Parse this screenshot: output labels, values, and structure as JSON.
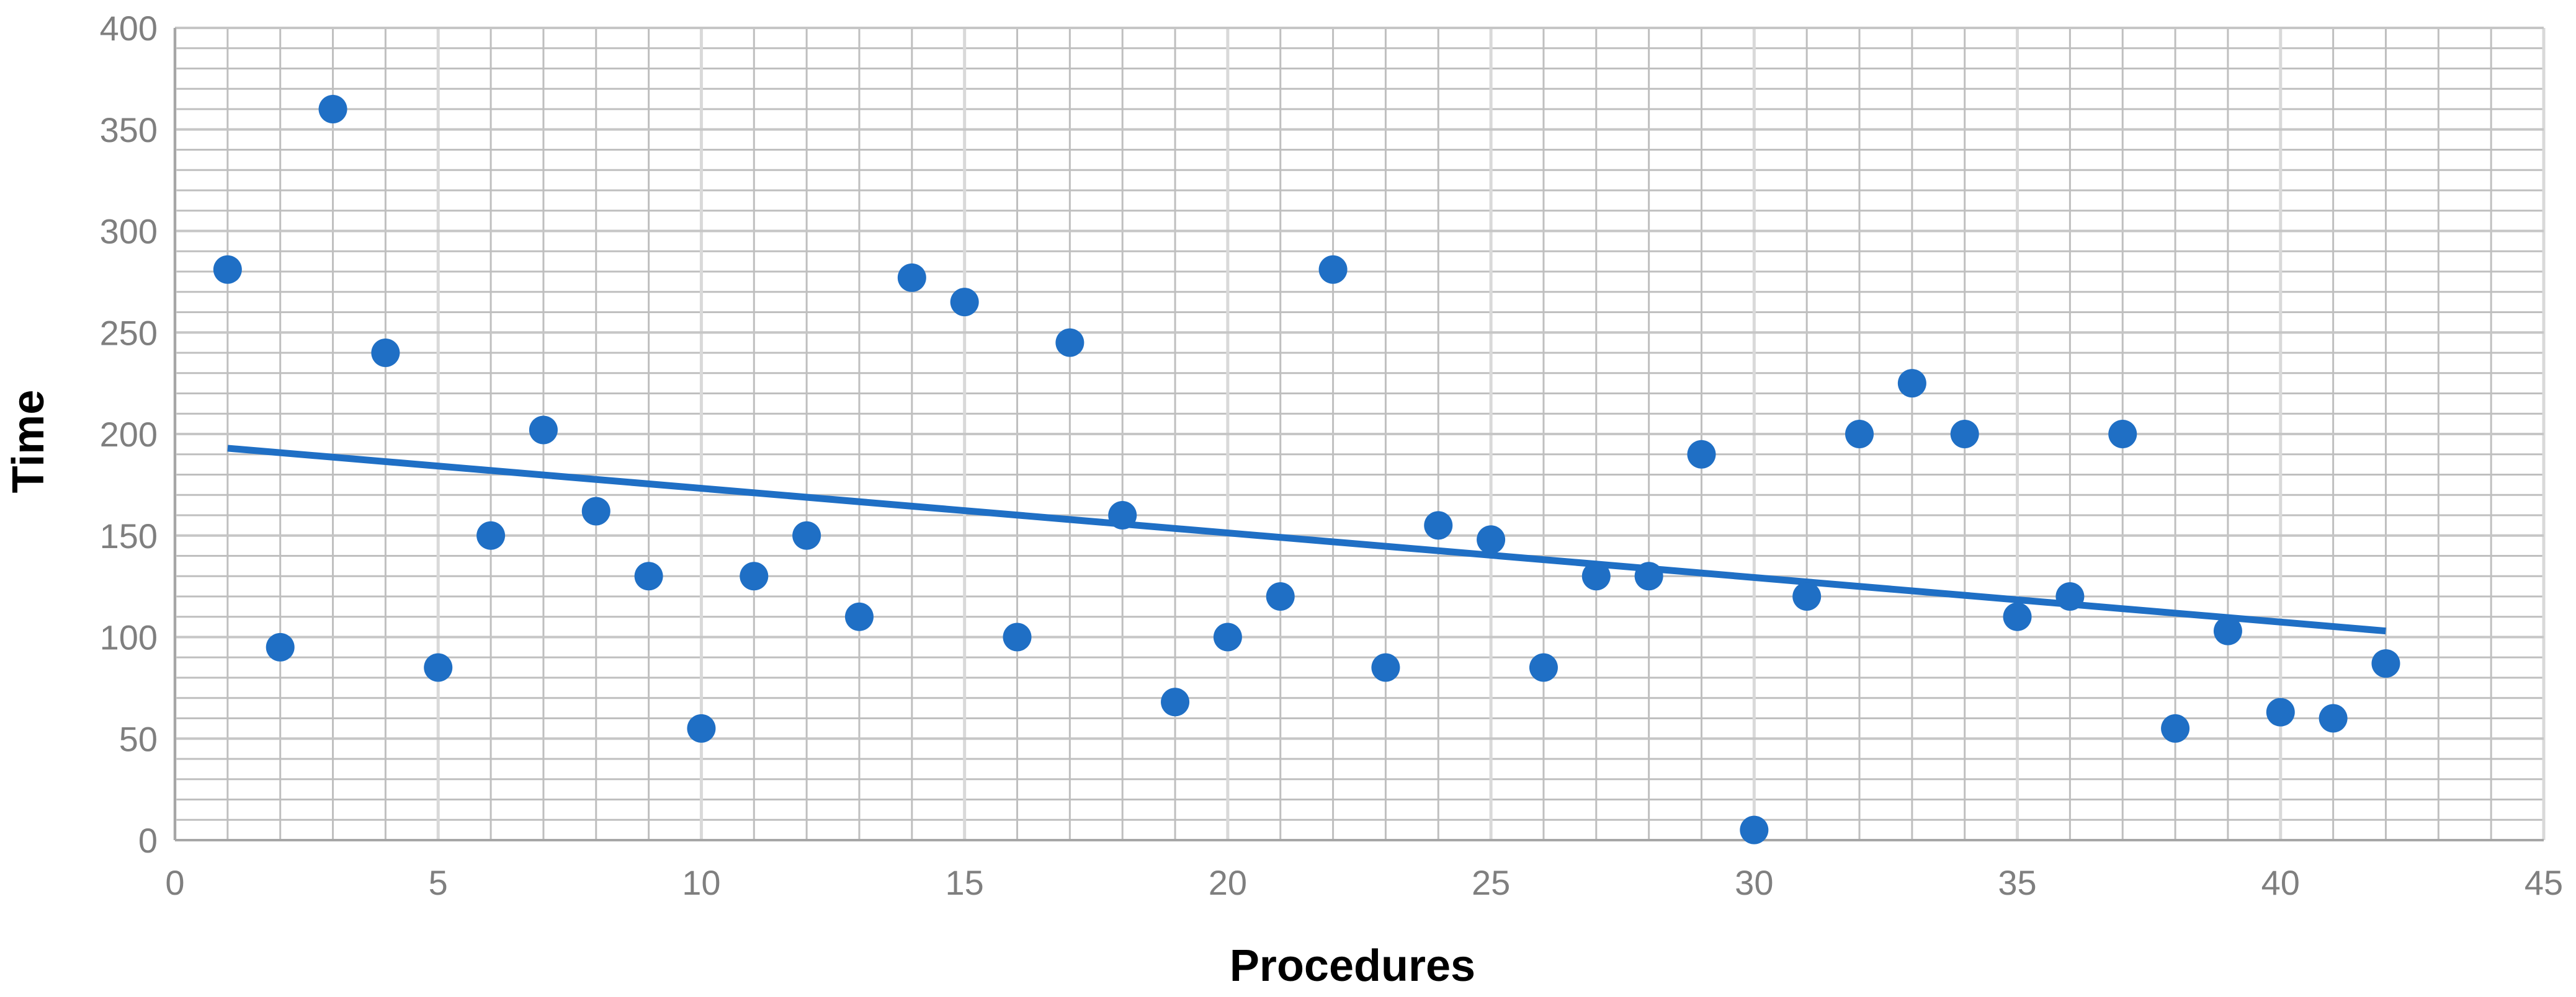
{
  "chart_data": {
    "type": "scatter",
    "title": "",
    "xlabel": "Procedures",
    "ylabel": "Time",
    "xlim": [
      0,
      45
    ],
    "ylim": [
      0,
      400
    ],
    "x_ticks": [
      0,
      5,
      10,
      15,
      20,
      25,
      30,
      35,
      40,
      45
    ],
    "y_ticks": [
      0,
      50,
      100,
      150,
      200,
      250,
      300,
      350,
      400
    ],
    "x_tick_labels": [
      "0",
      "5",
      "10",
      "15",
      "20",
      "25",
      "30",
      "35",
      "40",
      "45"
    ],
    "y_tick_labels": [
      "0",
      "50",
      "100",
      "150",
      "200",
      "250",
      "300",
      "350",
      "400"
    ],
    "grid": true,
    "minor_grid": true,
    "legend": "none",
    "point_color": "#1f6fc5",
    "trendline_color": "#1f6fc5",
    "grid_color": "#bfbfbf",
    "series": [
      {
        "x": [
          1,
          2,
          3,
          4,
          5,
          6,
          7,
          8,
          9,
          10,
          11,
          12,
          13,
          14,
          15,
          16,
          17,
          18,
          19,
          20,
          21,
          22,
          23,
          24,
          25,
          26,
          27,
          28,
          29,
          30,
          31,
          32,
          33,
          34,
          35,
          36,
          37,
          38,
          39,
          40,
          41,
          42
        ],
        "y": [
          281,
          95,
          360,
          240,
          85,
          150,
          202,
          162,
          130,
          55,
          130,
          150,
          110,
          277,
          265,
          100,
          245,
          160,
          68,
          100,
          120,
          281,
          85,
          155,
          148,
          85,
          130,
          130,
          190,
          5,
          120,
          200,
          225,
          200,
          110,
          120,
          200,
          55,
          103,
          63,
          60,
          87
        ]
      }
    ],
    "trendline": {
      "type": "linear",
      "x": [
        1,
        42
      ],
      "y": [
        193,
        103
      ]
    }
  }
}
